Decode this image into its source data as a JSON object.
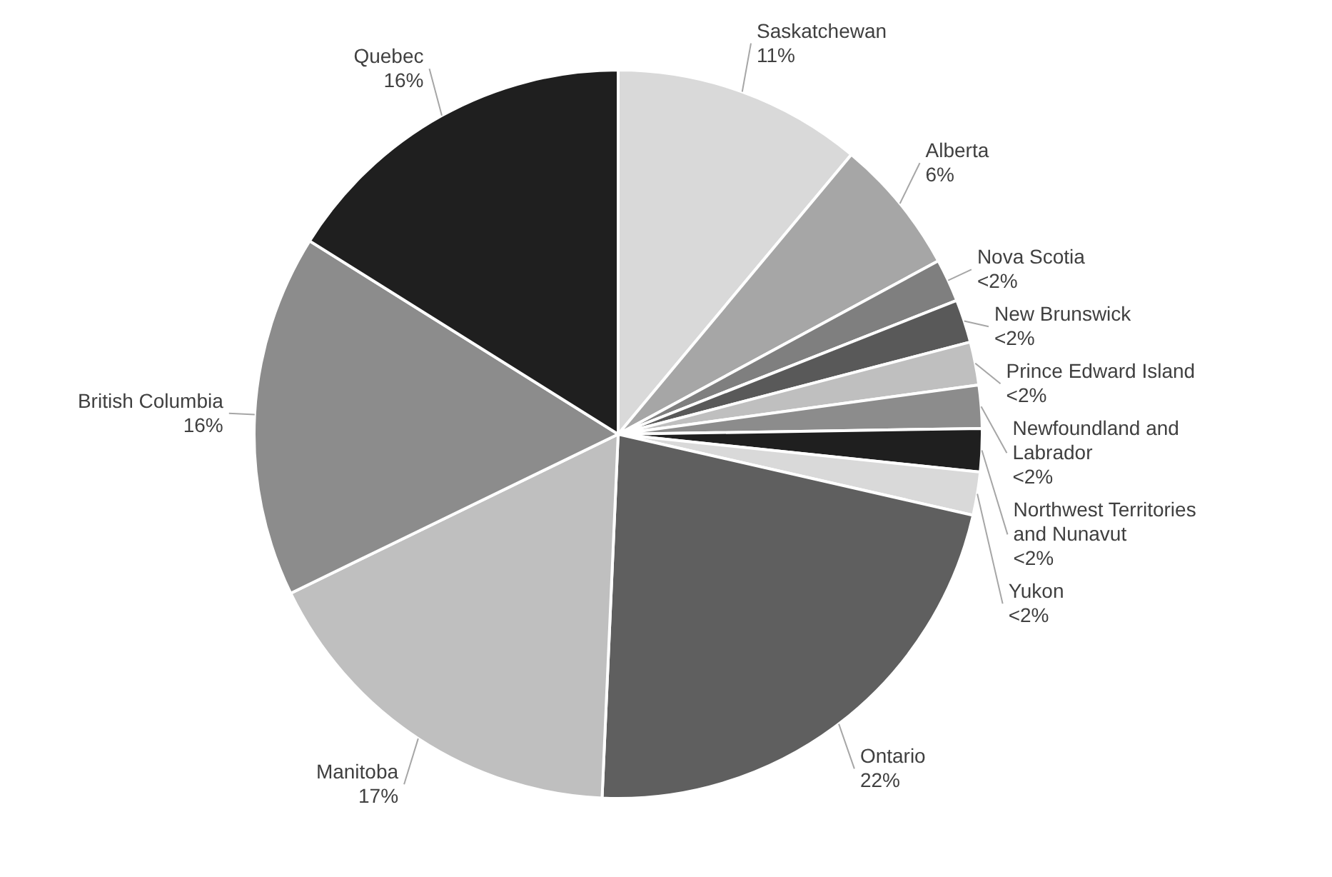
{
  "chart_data": {
    "type": "pie",
    "categories": [
      "Saskatchewan",
      "Alberta",
      "Nova Scotia",
      "New Brunswick",
      "Prince Edward Island",
      "Newfoundland and Labrador",
      "Northwest Territories and Nunavut",
      "Yukon",
      "Ontario",
      "Manitoba",
      "British Columbia",
      "Quebec"
    ],
    "values": [
      11,
      6,
      1.9,
      1.9,
      1.9,
      1.9,
      1.9,
      1.9,
      22,
      17,
      16,
      16
    ],
    "value_labels": [
      "11%",
      "6%",
      "<2%",
      "<2%",
      "<2%",
      "<2%",
      "<2%",
      "<2%",
      "22%",
      "17%",
      "16%",
      "16%"
    ],
    "colors": [
      "#d9d9d9",
      "#a6a6a6",
      "#7f7f7f",
      "#595959",
      "#bfbfbf",
      "#8c8c8c",
      "#1f1f1f",
      "#d9d9d9",
      "#5f5f5f",
      "#bfbfbf",
      "#8c8c8c",
      "#1f1f1f"
    ]
  }
}
